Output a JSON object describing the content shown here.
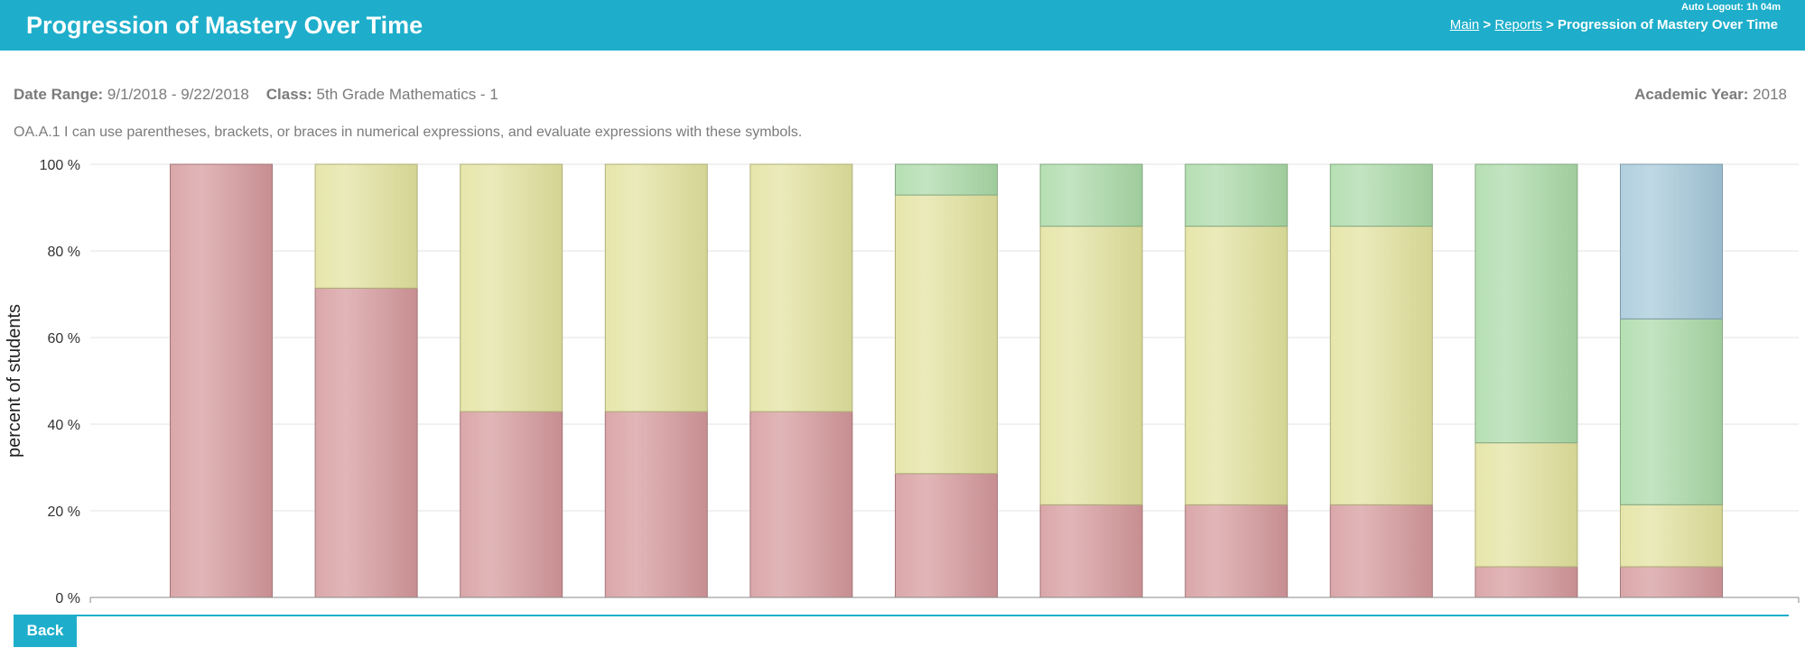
{
  "header": {
    "title": "Progression of Mastery Over Time",
    "auto_logout": "Auto Logout: 1h 04m",
    "breadcrumb": {
      "main": "Main",
      "sep1": " > ",
      "reports": "Reports",
      "sep2": " > ",
      "current": "Progression of Mastery Over Time"
    }
  },
  "meta": {
    "date_range_label": "Date Range:",
    "date_range_value": "9/1/2018 - 9/22/2018",
    "class_label": "Class:",
    "class_value": "5th Grade Mathematics - 1",
    "academic_year_label": "Academic Year:",
    "academic_year_value": "2018"
  },
  "standard_text": "OA.A.1 I can use parentheses, brackets, or braces in numerical expressions, and evaluate expressions with these symbols.",
  "back_label": "Back",
  "colors": {
    "header": "#1eaecb",
    "red": "#d4979a",
    "yellow": "#e2e19c",
    "green": "#a9d9a6",
    "blue": "#a3c7d9"
  },
  "chart_data": {
    "type": "bar",
    "stacked": true,
    "ylabel": "percent of students",
    "ylim": [
      0,
      100
    ],
    "yticks": [
      "0 %",
      "20 %",
      "40 %",
      "60 %",
      "80 %",
      "100 %"
    ],
    "grid": true,
    "categories": [
      "",
      "",
      "",
      "",
      "",
      "",
      "",
      "",
      "",
      "",
      ""
    ],
    "series": [
      {
        "color": "#d4979a",
        "values": [
          100,
          71.4,
          42.9,
          42.9,
          42.9,
          28.6,
          21.4,
          21.4,
          21.4,
          7.1,
          7.1
        ]
      },
      {
        "color": "#e2e19c",
        "values": [
          0,
          28.6,
          57.1,
          57.1,
          57.1,
          64.3,
          64.3,
          64.3,
          64.3,
          28.6,
          14.3
        ]
      },
      {
        "color": "#a9d9a6",
        "values": [
          0,
          0,
          0,
          0,
          0,
          7.1,
          14.3,
          14.3,
          14.3,
          64.3,
          42.9
        ]
      },
      {
        "color": "#a3c7d9",
        "values": [
          0,
          0,
          0,
          0,
          0,
          0,
          0,
          0,
          0,
          0,
          35.7
        ]
      }
    ]
  }
}
